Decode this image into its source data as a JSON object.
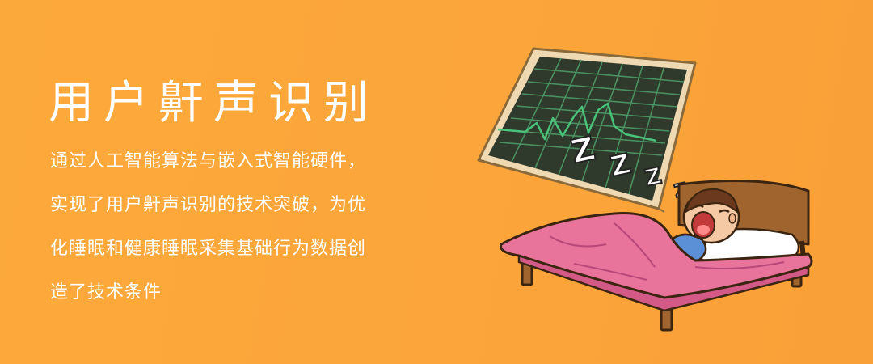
{
  "banner": {
    "title": "用户鼾声识别",
    "description_lines": [
      "通过人工智能算法与嵌入式智能硬件，",
      "实现了用户鼾声识别的技术突破，为优",
      "化睡眠和健康睡眠采集基础行为数据创",
      "造了技术条件"
    ]
  },
  "illustration": {
    "snore_letters": [
      "Z",
      "Z",
      "Z",
      "Z"
    ]
  },
  "colors": {
    "background": "#fba63a",
    "text": "#ffffff",
    "monitor_screen": "#2f3a2c",
    "monitor_frame": "#eed9b2",
    "waveform": "#49c27a",
    "blanket": "#e8739b",
    "bed_frame": "#a0642f",
    "pajamas": "#5b8fd6"
  }
}
